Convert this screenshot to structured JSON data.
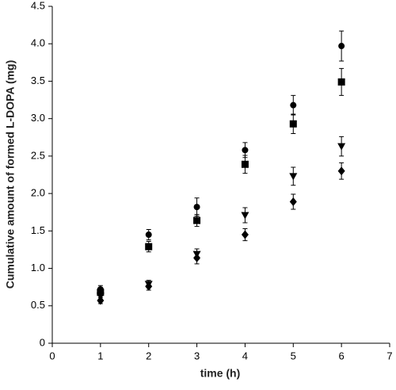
{
  "chart_data": {
    "type": "scatter",
    "x_label": "time (h)",
    "y_label": "Cumulative amount of formed L-DOPA (mg)",
    "xlim": [
      0,
      7
    ],
    "xticks": [
      0,
      1,
      2,
      3,
      4,
      5,
      6,
      7
    ],
    "ylim": [
      0,
      4.5
    ],
    "yticks": [
      0,
      0.5,
      {
        "value": 1,
        "label": "1.0"
      },
      1.5,
      {
        "value": 2,
        "label": "2.0"
      },
      2.5,
      {
        "value": 3,
        "label": "3.0"
      },
      3.5,
      {
        "value": 4,
        "label": "4.0"
      },
      4.5
    ],
    "grid": false,
    "x": [
      1,
      2,
      3,
      4,
      5,
      6
    ],
    "series": [
      {
        "marker": "circle",
        "color": "#000000",
        "values": [
          0.72,
          1.45,
          1.82,
          2.58,
          3.18,
          3.97
        ],
        "errors": [
          0.05,
          0.07,
          0.12,
          0.1,
          0.13,
          0.2
        ]
      },
      {
        "marker": "square",
        "color": "#000000",
        "values": [
          0.68,
          1.29,
          1.64,
          2.39,
          2.93,
          3.49
        ],
        "errors": [
          0.05,
          0.07,
          0.08,
          0.12,
          0.13,
          0.18
        ]
      },
      {
        "marker": "triangle-down",
        "color": "#000000",
        "values": [
          0.63,
          0.79,
          1.19,
          1.71,
          2.23,
          2.63
        ],
        "errors": [
          0.04,
          0.05,
          0.07,
          0.1,
          0.12,
          0.13
        ]
      },
      {
        "marker": "diamond",
        "color": "#000000",
        "values": [
          0.57,
          0.76,
          1.14,
          1.45,
          1.89,
          2.3
        ],
        "errors": [
          0.04,
          0.05,
          0.08,
          0.08,
          0.1,
          0.11
        ]
      }
    ]
  }
}
